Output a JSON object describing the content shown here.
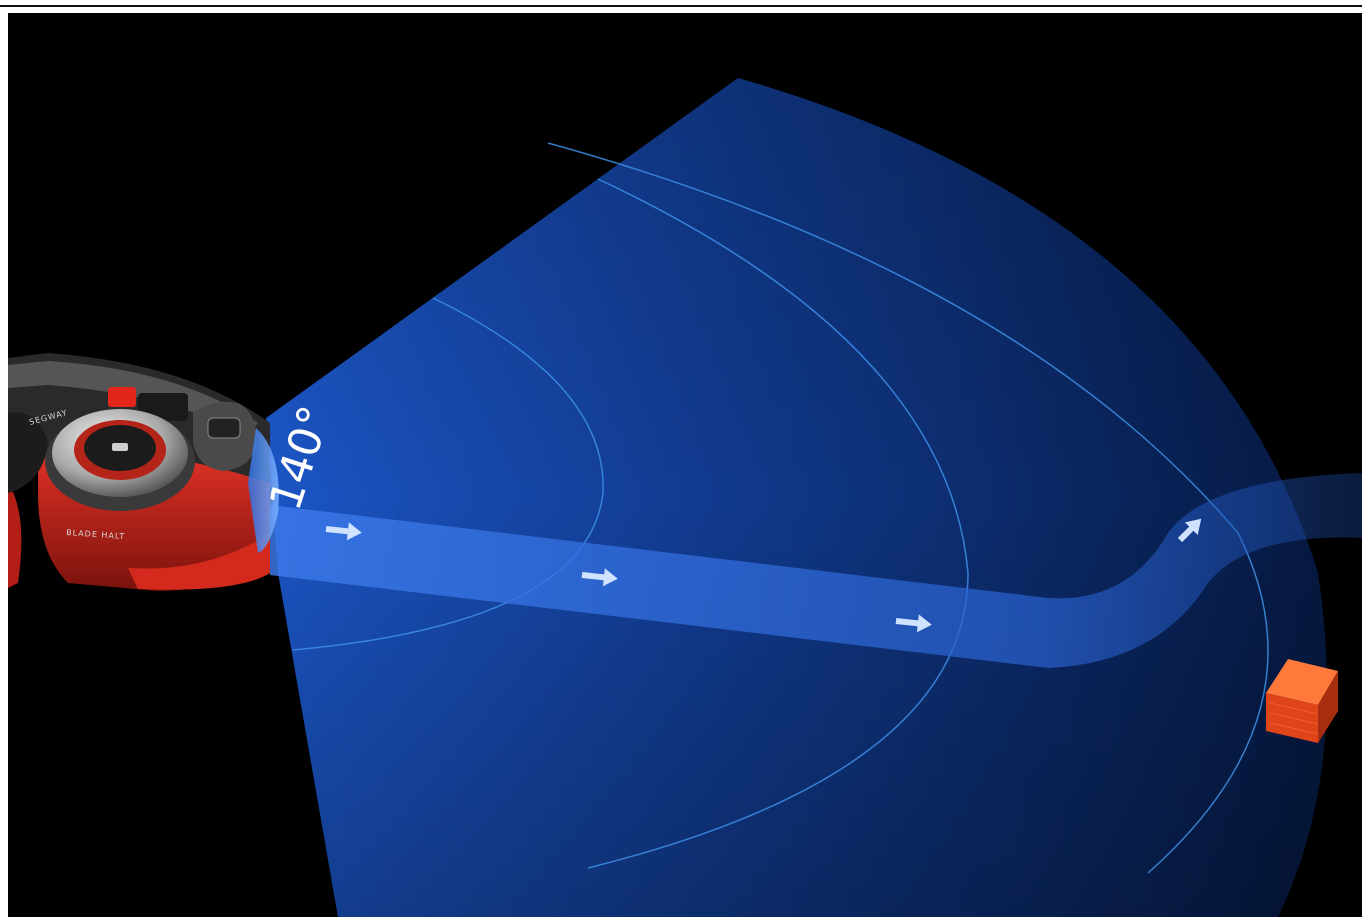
{
  "scene": {
    "angle_label": "140°",
    "mower_model_text": "BLADE HALT",
    "brand_text": "SEGWAY",
    "colors": {
      "background": "#000000",
      "sensor_field": "#1a4fb8",
      "field_rings": "#3d8fe8",
      "path_band": "#2f6ad8",
      "arrow": "#cfe2ff",
      "obstacle": "#ff5a1a",
      "mower_body": "#c8261b"
    },
    "icons": {
      "direction_arrows": "arrow-right-icon",
      "turn_arrow": "arrow-up-right-icon",
      "obstacle": "obstacle-box-icon"
    }
  }
}
